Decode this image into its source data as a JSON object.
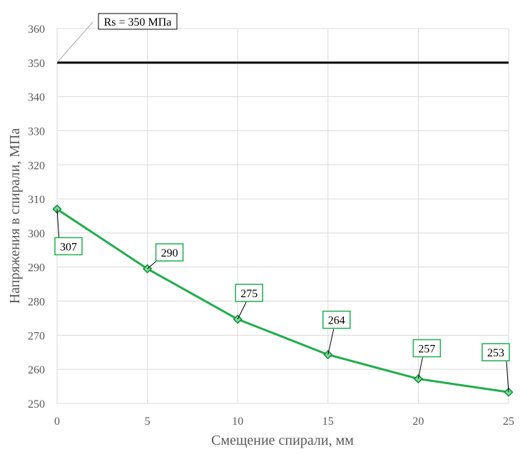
{
  "chart_data": {
    "type": "line",
    "xlabel": "Смещение спирали, мм",
    "ylabel": "Напряжения в спирали, МПа",
    "xlim": [
      0,
      25
    ],
    "ylim": [
      250,
      360
    ],
    "x_ticks": [
      0,
      5,
      10,
      15,
      20,
      25
    ],
    "y_ticks": [
      250,
      260,
      270,
      280,
      290,
      300,
      310,
      320,
      330,
      340,
      350,
      360
    ],
    "grid": true,
    "series": [
      {
        "x": [
          0,
          5,
          10,
          15,
          20,
          25
        ],
        "values": [
          307,
          289.5,
          274.7,
          264.3,
          257.2,
          253.3
        ],
        "data_labels": [
          "307",
          "290",
          "275",
          "264",
          "257",
          "253"
        ],
        "color": "#1fae4b",
        "marker": "diamond"
      }
    ],
    "reference_line": {
      "value": 350,
      "label": "Rs = 350 МПа",
      "color": "#000000"
    }
  }
}
